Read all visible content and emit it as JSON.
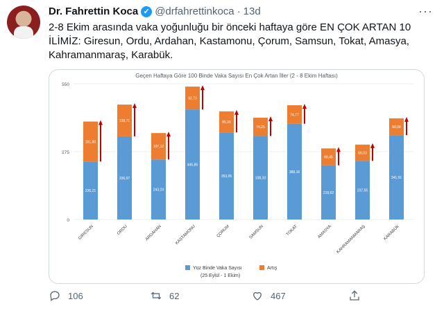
{
  "tweet": {
    "author_name": "Dr. Fahrettin Koca",
    "handle": "@drfahrettinkoca",
    "separator": "·",
    "time": "13d",
    "text_line1": "2-8 Ekim arasında vaka yoğunluğu bir önceki haftaya göre EN ÇOK ARTAN 10",
    "text_line2": "İLİMİZ: Giresun, Ordu, Ardahan, Kastamonu, Çorum, Samsun, Tokat, Amasya,",
    "text_line3": "Kahramanmaraş, Karabük.",
    "replies": "106",
    "retweets": "62",
    "likes": "467"
  },
  "icons": {
    "more": "more-icon",
    "verified": "verified-badge-icon",
    "reply": "reply-icon",
    "retweet": "retweet-icon",
    "like": "heart-icon",
    "share": "share-icon"
  },
  "colors": {
    "base_bar": "#5b9bd5",
    "increase_bar": "#ed7d31",
    "arrow": "#c00000",
    "twitter_blue": "#1d9bf0"
  },
  "chart_data": {
    "type": "bar",
    "title": "Geçen Haftaya Göre 100 Binde Vaka Sayısı En Çok Artan İller (2 - 8 Ekim Haftası)",
    "categories": [
      "GİRESUN",
      "ORDU",
      "ARDAHAN",
      "KASTAMONU",
      "ÇORUM",
      "SAMSUN",
      "TOKAT",
      "AMASYA",
      "KAHRAMANMARAŞ",
      "KARABÜK"
    ],
    "series": [
      {
        "name": "Yüz Binde Vaka Sayısı (25 Eylül - 1 Ekim)",
        "values": [
          235.21,
          336.97,
          243.24,
          445.85,
          353.05,
          338.33,
          388.16,
          219.62,
          237.55,
          341.91
        ],
        "labels": [
          "235,21",
          "336,97",
          "243,24",
          "445,85",
          "353,05",
          "338,33",
          "388,16",
          "219,62",
          "237,55",
          "341,91"
        ]
      },
      {
        "name": "Artış",
        "values": [
          161.8,
          128.71,
          107.12,
          92.73,
          85.26,
          74.25,
          74.77,
          68.45,
          66.03,
          68.08
        ],
        "labels": [
          "161,80",
          "128,71",
          "107,12",
          "92,73",
          "85,26",
          "74,25",
          "74,77",
          "68,45",
          "66,03",
          "68,08"
        ]
      }
    ],
    "yticks": [
      "0",
      "275",
      "550"
    ],
    "ylim": [
      0,
      550
    ],
    "legend": [
      "Yüz Binde Vaka Sayısı",
      "(25 Eylül - 1 Ekim)",
      "Artış"
    ],
    "legend_position": "bottom"
  }
}
